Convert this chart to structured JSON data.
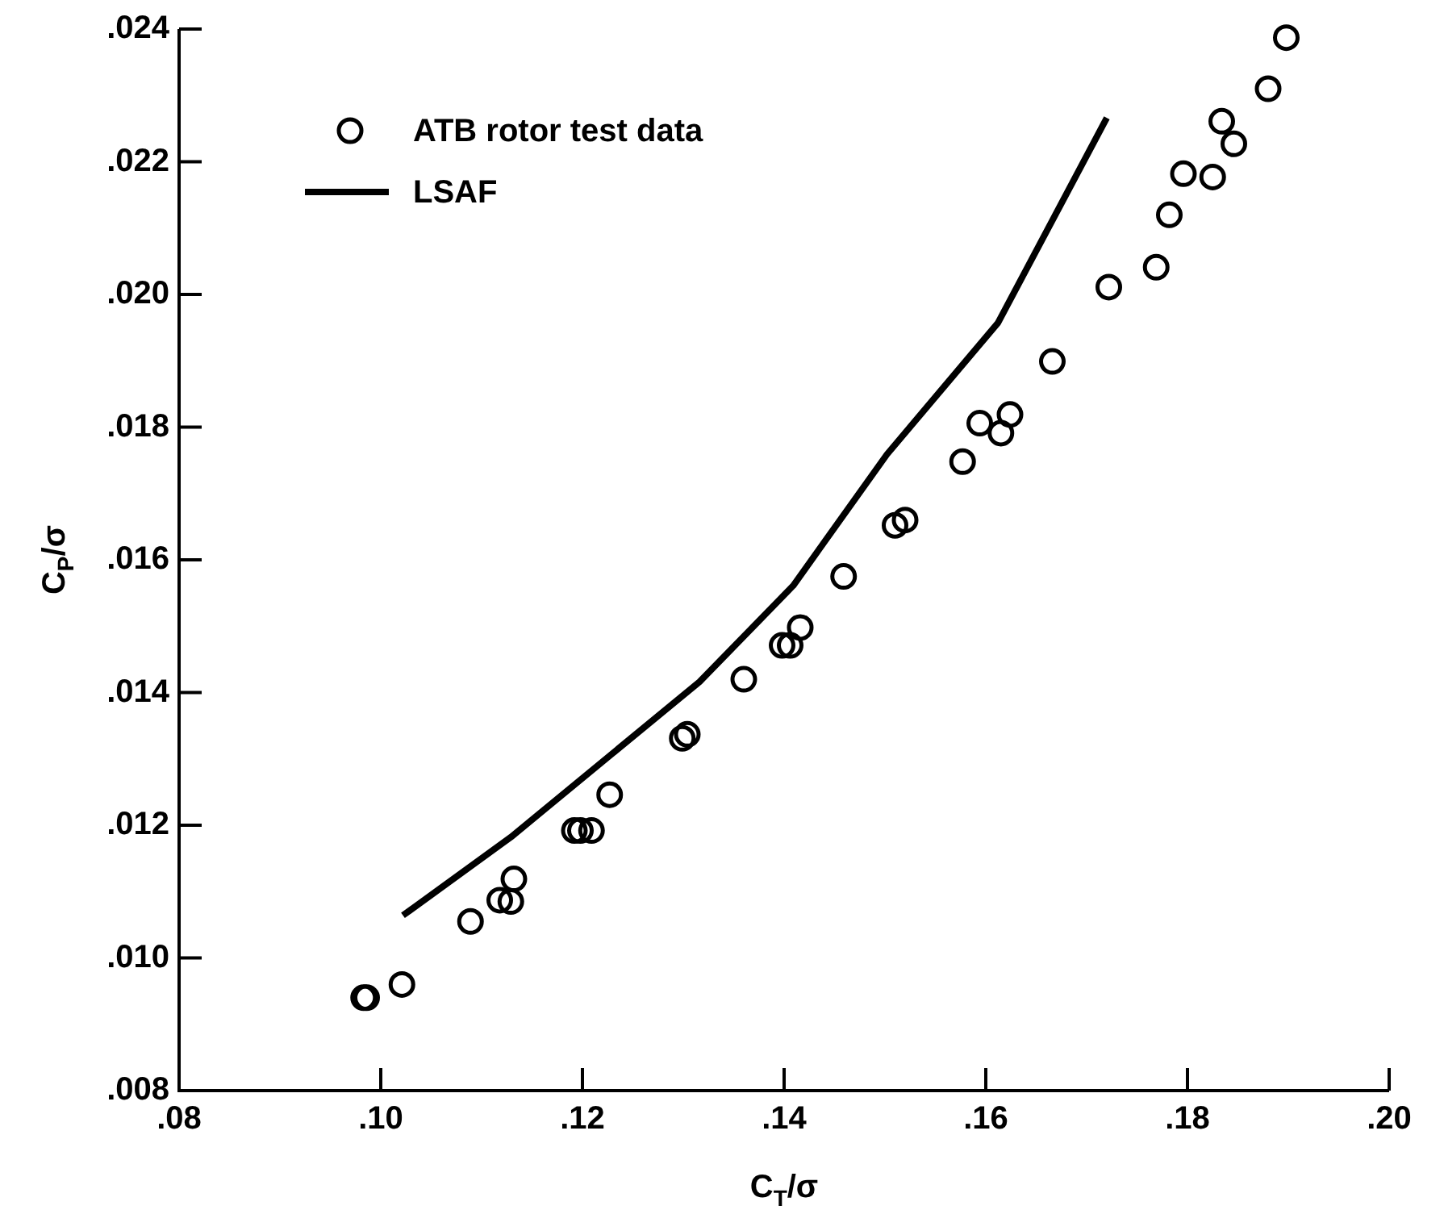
{
  "chart_data": {
    "type": "scatter",
    "xlabel": "C$_{T}$/σ",
    "ylabel": "C$_{P}$/σ",
    "xlim": [
      0.08,
      0.2
    ],
    "ylim": [
      0.008,
      0.024
    ],
    "xticks": [
      {
        "value": 0.08,
        "label": ".08"
      },
      {
        "value": 0.1,
        "label": ".10"
      },
      {
        "value": 0.12,
        "label": ".12"
      },
      {
        "value": 0.14,
        "label": ".14"
      },
      {
        "value": 0.16,
        "label": ".16"
      },
      {
        "value": 0.18,
        "label": ".18"
      },
      {
        "value": 0.2,
        "label": ".20"
      }
    ],
    "yticks": [
      {
        "value": 0.008,
        "label": ".008"
      },
      {
        "value": 0.01,
        "label": ".010"
      },
      {
        "value": 0.012,
        "label": ".012"
      },
      {
        "value": 0.014,
        "label": ".014"
      },
      {
        "value": 0.016,
        "label": ".016"
      },
      {
        "value": 0.018,
        "label": ".018"
      },
      {
        "value": 0.02,
        "label": ".020"
      },
      {
        "value": 0.022,
        "label": ".022"
      },
      {
        "value": 0.024,
        "label": ".024"
      }
    ],
    "grid": false,
    "legend": "top left",
    "series": [
      {
        "name": "ATB rotor test data",
        "type": "scatter",
        "marker": "circle",
        "color": "#000000",
        "x": [
          0.0983,
          0.0986,
          0.1021,
          0.1089,
          0.1118,
          0.1129,
          0.1132,
          0.1192,
          0.1198,
          0.1209,
          0.1227,
          0.1299,
          0.1304,
          0.136,
          0.1398,
          0.1406,
          0.1416,
          0.1459,
          0.151,
          0.152,
          0.1577,
          0.1594,
          0.1615,
          0.1624,
          0.1666,
          0.1722,
          0.1769,
          0.1782,
          0.1796,
          0.1825,
          0.1834,
          0.1846,
          0.188,
          0.1898
        ],
        "values": [
          0.0094,
          0.0094,
          0.0096,
          0.01055,
          0.01087,
          0.01085,
          0.01119,
          0.01192,
          0.01192,
          0.01192,
          0.01246,
          0.01331,
          0.01337,
          0.0142,
          0.01471,
          0.01471,
          0.01498,
          0.01575,
          0.01652,
          0.0166,
          0.01748,
          0.01806,
          0.01791,
          0.01819,
          0.01899,
          0.02011,
          0.02041,
          0.0212,
          0.02182,
          0.02177,
          0.02261,
          0.02227,
          0.0231,
          0.02387
        ]
      },
      {
        "name": "LSAF",
        "type": "line",
        "marker": "none",
        "line_style": "solid",
        "color": "#000000",
        "x": [
          0.1022,
          0.1129,
          0.1316,
          0.1409,
          0.1502,
          0.1612,
          0.172
        ],
        "values": [
          0.01064,
          0.01182,
          0.01416,
          0.01561,
          0.01759,
          0.01957,
          0.02266
        ]
      }
    ]
  }
}
